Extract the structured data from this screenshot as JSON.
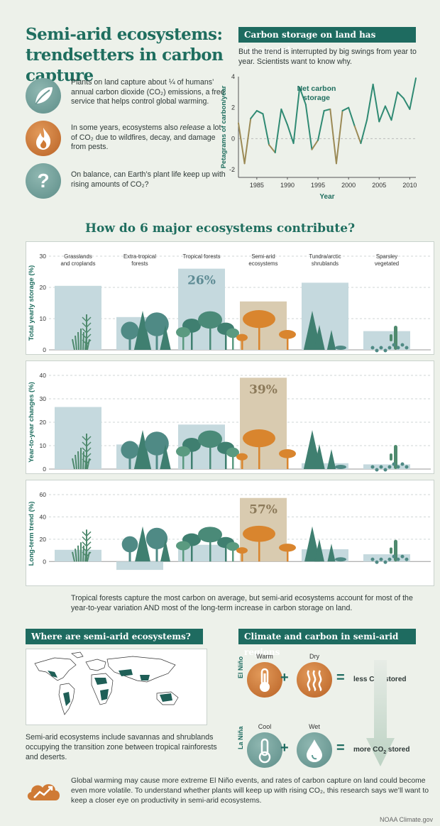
{
  "header": {
    "title_line1": "Semi-arid ecosystems:",
    "title_line2": "trendsetters in carbon capture"
  },
  "intro": [
    {
      "icon": "leaf-icon",
      "text": "Plants on land capture about ¼ of humans’ annual carbon dioxide (CO₂) emissions, a free service that helps control global warming."
    },
    {
      "icon": "fire-icon",
      "text_before": "In some years, ecosystems also ",
      "text_em": "release",
      "text_after": " a lot of CO₂ due to wildfires, decay, and damage from pests."
    },
    {
      "icon": "question-icon",
      "glyph": "?",
      "text": "On balance, can Earth’s plant life keep up with rising amounts of CO₂?"
    }
  ],
  "line_section": {
    "banner": "Carbon storage on land has increased",
    "subtitle": "But the trend is interrupted by big swings from year to year. Scientists want to know why."
  },
  "chart_data": [
    {
      "type": "line",
      "title": "Net carbon storage",
      "xlabel": "Year",
      "ylabel": "Petagrams of carbon/year",
      "xlim": [
        1982,
        2011
      ],
      "ylim": [
        -2.5,
        4
      ],
      "x_ticks": [
        "1985",
        "1990",
        "1995",
        "2000",
        "2005",
        "2010"
      ],
      "y_ticks": [
        "4",
        "2",
        "0",
        "-2"
      ],
      "x": [
        1982,
        1983,
        1984,
        1985,
        1986,
        1987,
        1988,
        1989,
        1990,
        1991,
        1992,
        1993,
        1994,
        1995,
        1996,
        1997,
        1998,
        1999,
        2000,
        2001,
        2002,
        2003,
        2004,
        2005,
        2006,
        2007,
        2008,
        2009,
        2010,
        2011
      ],
      "y": [
        1.0,
        -1.6,
        1.3,
        1.8,
        1.6,
        -0.4,
        -0.9,
        1.9,
        0.9,
        -0.3,
        3.3,
        2.2,
        -0.7,
        -0.1,
        1.8,
        1.9,
        -1.6,
        1.8,
        2.0,
        0.8,
        -0.3,
        1.2,
        3.5,
        1.1,
        2.1,
        1.2,
        3.0,
        2.6,
        1.9,
        3.9
      ],
      "grid": true
    },
    {
      "type": "bar",
      "ylabel": "Total yearly storage (%)",
      "ylim": [
        0,
        30
      ],
      "y_ticks": [
        "30",
        "20",
        "10",
        "0"
      ],
      "categories": [
        "Grasslands and croplands",
        "Extra-tropical forests",
        "Tropical forests",
        "Semi-arid ecosystems",
        "Tundra/arctic shrublands",
        "Sparsley vegetated"
      ],
      "values": [
        20.5,
        10.5,
        26,
        15.5,
        21.5,
        6
      ],
      "highlight_label": "26%",
      "highlight_index": 2
    },
    {
      "type": "bar",
      "ylabel": "Year-to-year changes (%)",
      "ylim": [
        0,
        40
      ],
      "y_ticks": [
        "40",
        "30",
        "20",
        "10",
        "0"
      ],
      "categories": [
        "Grasslands and croplands",
        "Extra-tropical forests",
        "Tropical forests",
        "Semi-arid ecosystems",
        "Tundra/arctic shrublands",
        "Sparsley vegetated"
      ],
      "values": [
        26.5,
        10.5,
        19,
        39,
        2.5,
        2
      ],
      "highlight_label": "39%",
      "highlight_index": 3
    },
    {
      "type": "bar",
      "ylabel": "Long-term trend (%)",
      "ylim": [
        -10,
        60
      ],
      "y_ticks": [
        "60",
        "40",
        "20",
        "0"
      ],
      "categories": [
        "Grasslands and croplands",
        "Extra-tropical forests",
        "Tropical forests",
        "Semi-arid ecosystems",
        "Tundra/arctic shrublands",
        "Sparsley vegetated"
      ],
      "values": [
        10.5,
        -7.5,
        15,
        57,
        11,
        6.5
      ],
      "highlight_label": "57%",
      "highlight_index": 3
    }
  ],
  "bars_section": {
    "heading": "How do 6 major ecosystems contribute?",
    "cat_lines": [
      [
        "Grasslands",
        "and croplands"
      ],
      [
        "Extra-tropical",
        "forests"
      ],
      [
        "Tropical forests",
        ""
      ],
      [
        "Semi-arid",
        "ecosystems"
      ],
      [
        "Tundra/arctic",
        "shrublands"
      ],
      [
        "Sparsley",
        "vegetated"
      ]
    ],
    "footnote": "Tropical forests capture the most carbon on average, but semi-arid ecosystems account for most of the year-to-year variation AND most of the long-term increase in carbon storage on land."
  },
  "map_section": {
    "banner": "Where are semi-arid ecosystems?",
    "caption": "Semi-arid ecosystems include savannas and shrublands occupying the transition zone between tropical rainforests and deserts."
  },
  "climate_section": {
    "banner": "Climate and carbon in semi-arid regions",
    "el_nino": "El Niño",
    "la_nina": "La Niña",
    "warm": "Warm",
    "dry": "Dry",
    "cool": "Cool",
    "wet": "Wet",
    "plus": "+",
    "equals": "=",
    "less_pre": "less CO",
    "less_post": " stored",
    "more_pre": "more CO",
    "more_post": " stored",
    "sub2": "2"
  },
  "footer": {
    "text": "Global warming may cause more extreme El Niño events, and rates of carbon capture on land could become even more volatile. To understand whether plants will keep up with rising CO₂, this research says we’ll want to keep a closer eye on productivity in semi-arid ecosystems.",
    "credit": "NOAA Climate.gov"
  },
  "colors": {
    "accent": "#1e6b60",
    "bar": "#c5d9de",
    "bar_semi": "#d9cbb0",
    "leaf_circle": "#6d9a95",
    "fire_circle": "#cf7a35",
    "cool_circle": "#5f9c95"
  }
}
